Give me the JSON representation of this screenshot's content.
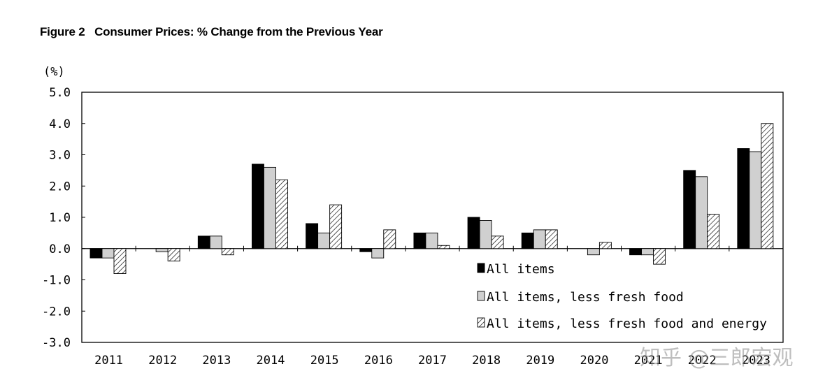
{
  "figure_title": "Figure 2   Consumer Prices: % Change from the Previous Year",
  "watermark": "知乎 @三郎宏观",
  "colors": {
    "all_items": "#000000",
    "less_fresh_food": "#d0d0d0",
    "less_fresh_food_energy": "#ffffff",
    "hatch": "#000000",
    "axis": "#000000"
  },
  "chart_data": {
    "type": "bar",
    "title": "",
    "ylabel": "(%)",
    "xlabel": "",
    "ylim": [
      -3.0,
      5.0
    ],
    "yticks": [
      "5.0",
      "4.0",
      "3.0",
      "2.0",
      "1.0",
      "0.0",
      "-1.0",
      "-2.0",
      "-3.0"
    ],
    "ytick_values": [
      5,
      4,
      3,
      2,
      1,
      0,
      -1,
      -2,
      -3
    ],
    "grid": false,
    "legend_position": "bottom-right",
    "categories": [
      "2011",
      "2012",
      "2013",
      "2014",
      "2015",
      "2016",
      "2017",
      "2018",
      "2019",
      "2020",
      "2021",
      "2022",
      "2023"
    ],
    "series": [
      {
        "name": "All items",
        "pattern": "solid-black",
        "values": [
          -0.3,
          0.0,
          0.4,
          2.7,
          0.8,
          -0.1,
          0.5,
          1.0,
          0.5,
          0.0,
          -0.2,
          2.5,
          3.2
        ]
      },
      {
        "name": "All items, less fresh food",
        "pattern": "solid-gray",
        "values": [
          -0.3,
          -0.1,
          0.4,
          2.6,
          0.5,
          -0.3,
          0.5,
          0.9,
          0.6,
          -0.2,
          -0.2,
          2.3,
          3.1
        ]
      },
      {
        "name": "All items, less fresh food and energy",
        "pattern": "hatched",
        "values": [
          -0.8,
          -0.4,
          -0.2,
          2.2,
          1.4,
          0.6,
          0.1,
          0.4,
          0.6,
          0.2,
          -0.5,
          1.1,
          4.0
        ]
      }
    ]
  }
}
